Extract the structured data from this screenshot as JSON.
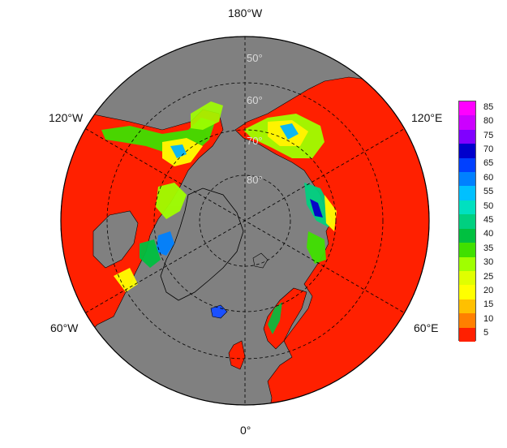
{
  "map": {
    "projection": "north-polar-stereographic",
    "ocean_color": "#808080",
    "coast_color": "#000000",
    "longitude_labels": {
      "top": "180°W",
      "bottom": "0°",
      "upper_left": "120°W",
      "upper_right": "120°E",
      "lower_left": "60°W",
      "lower_right": "60°E"
    },
    "latitude_labels": [
      "50°",
      "60°",
      "70°",
      "80°"
    ]
  },
  "colorbar": {
    "ticks": [
      "85",
      "80",
      "75",
      "70",
      "65",
      "60",
      "55",
      "50",
      "45",
      "40",
      "35",
      "30",
      "25",
      "20",
      "15",
      "10",
      "5"
    ],
    "colors": [
      "#ff00ff",
      "#cc00ff",
      "#8000ff",
      "#0000cc",
      "#0040ff",
      "#0080ff",
      "#00c0ff",
      "#00e0c0",
      "#00d080",
      "#00c040",
      "#40e000",
      "#a0ff00",
      "#e0ff00",
      "#ffff00",
      "#ffc000",
      "#ff8000",
      "#ff2000"
    ]
  }
}
